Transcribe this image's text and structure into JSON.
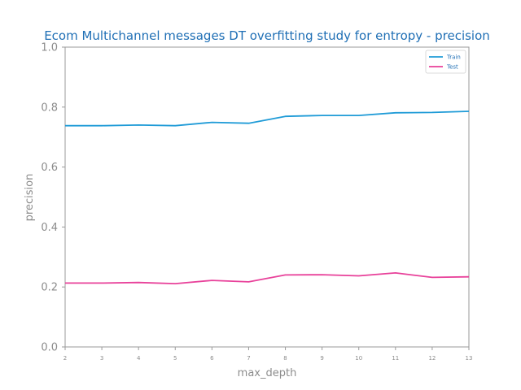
{
  "chart_data": {
    "type": "line",
    "title": "Ecom Multichannel messages DT overfitting study for entropy - precision",
    "xlabel": "max_depth",
    "ylabel": "precision",
    "x": [
      2,
      3,
      4,
      5,
      6,
      7,
      8,
      9,
      10,
      11,
      12,
      13
    ],
    "xlim": [
      2,
      13
    ],
    "ylim": [
      0.0,
      1.0
    ],
    "yticks": [
      "0.0",
      "0.2",
      "0.4",
      "0.6",
      "0.8",
      "1.0"
    ],
    "grid": false,
    "legend_position": "top-right",
    "series": [
      {
        "name": "Train",
        "color": "#1f9bd7",
        "values": [
          0.738,
          0.738,
          0.74,
          0.738,
          0.749,
          0.746,
          0.769,
          0.772,
          0.772,
          0.781,
          0.782,
          0.786
        ]
      },
      {
        "name": "Test",
        "color": "#e8419a",
        "values": [
          0.213,
          0.213,
          0.215,
          0.211,
          0.222,
          0.217,
          0.24,
          0.241,
          0.237,
          0.247,
          0.232,
          0.234
        ]
      }
    ]
  }
}
